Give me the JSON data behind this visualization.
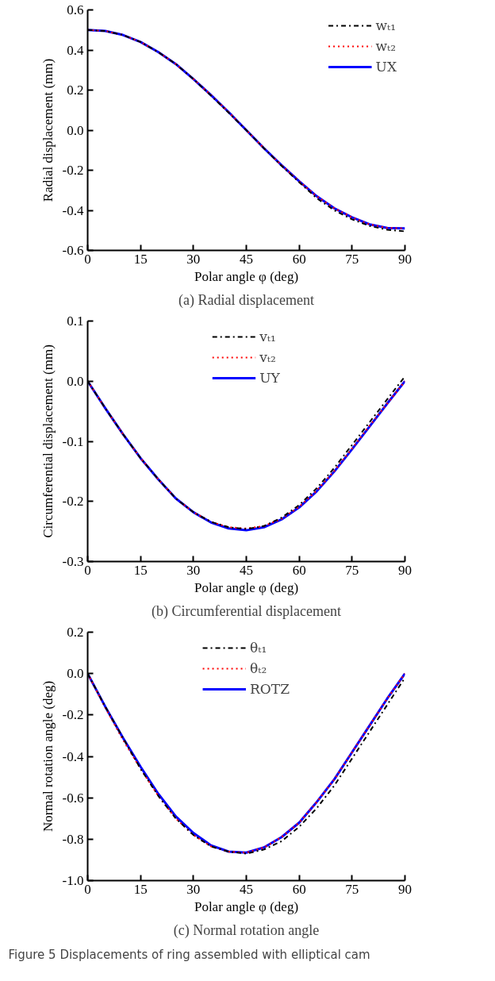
{
  "chart_data": [
    {
      "type": "line",
      "title": "(a) Radial displacement",
      "xlabel": "Polar angle φ (deg)",
      "ylabel": "Radial displacement (mm)",
      "x": [
        0,
        5,
        10,
        15,
        20,
        25,
        30,
        35,
        40,
        45,
        50,
        55,
        60,
        65,
        70,
        75,
        80,
        85,
        90
      ],
      "xlim": [
        0,
        90
      ],
      "xticks": [
        0,
        15,
        30,
        45,
        60,
        75,
        90
      ],
      "ylim": [
        -0.6,
        0.6
      ],
      "yticks": [
        {
          "value": -0.6,
          "label": "-0.6"
        },
        {
          "value": -0.4,
          "label": "-0.4"
        },
        {
          "value": -0.2,
          "label": "-0.2"
        },
        {
          "value": 0,
          "label": "0.0"
        },
        {
          "value": 0.2,
          "label": "0.2"
        },
        {
          "value": 0.4,
          "label": "0.4"
        },
        {
          "value": 0.6,
          "label": "0.6"
        }
      ],
      "grid": false,
      "legend": "top right",
      "series": [
        {
          "name": "wₜ₁",
          "color": "#000000",
          "line_style": "dashdot",
          "values": [
            0.5,
            0.495,
            0.475,
            0.44,
            0.39,
            0.33,
            0.255,
            0.172,
            0.087,
            0.0,
            -0.09,
            -0.178,
            -0.26,
            -0.34,
            -0.4,
            -0.445,
            -0.478,
            -0.497,
            -0.505
          ]
        },
        {
          "name": "wₜ₂",
          "color": "#ff0000",
          "line_style": "dotted",
          "values": [
            0.5,
            0.495,
            0.475,
            0.44,
            0.39,
            0.33,
            0.255,
            0.175,
            0.09,
            0.0,
            -0.09,
            -0.175,
            -0.255,
            -0.33,
            -0.39,
            -0.435,
            -0.47,
            -0.488,
            -0.49
          ]
        },
        {
          "name": "UX",
          "color": "#0000ff",
          "line_style": "solid",
          "values": [
            0.5,
            0.495,
            0.475,
            0.44,
            0.39,
            0.33,
            0.255,
            0.175,
            0.09,
            0.0,
            -0.09,
            -0.175,
            -0.255,
            -0.33,
            -0.39,
            -0.435,
            -0.47,
            -0.488,
            -0.49
          ]
        }
      ]
    },
    {
      "type": "line",
      "title": "(b) Circumferential displacement",
      "xlabel": "Polar angle φ (deg)",
      "ylabel": "Circumferential displacement (mm)",
      "x": [
        0,
        5,
        10,
        15,
        20,
        25,
        30,
        35,
        40,
        45,
        50,
        55,
        60,
        65,
        70,
        75,
        80,
        85,
        90
      ],
      "xlim": [
        0,
        90
      ],
      "xticks": [
        0,
        15,
        30,
        45,
        60,
        75,
        90
      ],
      "ylim": [
        -0.3,
        0.1
      ],
      "yticks": [
        {
          "value": -0.3,
          "label": "-0.3"
        },
        {
          "value": -0.2,
          "label": "-0.2"
        },
        {
          "value": -0.1,
          "label": "-0.1"
        },
        {
          "value": 0,
          "label": "0.0"
        },
        {
          "value": 0.1,
          "label": "0.1"
        }
      ],
      "grid": false,
      "legend": "top",
      "series": [
        {
          "name": "vₜ₁",
          "color": "#000000",
          "line_style": "dashdot",
          "values": [
            0,
            -0.045,
            -0.088,
            -0.128,
            -0.163,
            -0.195,
            -0.218,
            -0.234,
            -0.243,
            -0.246,
            -0.241,
            -0.227,
            -0.206,
            -0.178,
            -0.144,
            -0.106,
            -0.068,
            -0.03,
            0.008
          ]
        },
        {
          "name": "vₜ₂",
          "color": "#ff0000",
          "line_style": "dotted",
          "values": [
            0,
            -0.045,
            -0.088,
            -0.128,
            -0.163,
            -0.195,
            -0.218,
            -0.234,
            -0.243,
            -0.245,
            -0.241,
            -0.229,
            -0.209,
            -0.182,
            -0.149,
            -0.112,
            -0.074,
            -0.037,
            0.0
          ]
        },
        {
          "name": "UY",
          "color": "#0000ff",
          "line_style": "solid",
          "values": [
            0,
            -0.045,
            -0.088,
            -0.128,
            -0.163,
            -0.195,
            -0.218,
            -0.235,
            -0.245,
            -0.248,
            -0.243,
            -0.23,
            -0.21,
            -0.183,
            -0.15,
            -0.113,
            -0.075,
            -0.037,
            0.0
          ]
        }
      ]
    },
    {
      "type": "line",
      "title": "(c) Normal rotation angle",
      "xlabel": "Polar angle φ (deg)",
      "ylabel": "Normal rotation angle (deg)",
      "x": [
        0,
        5,
        10,
        15,
        20,
        25,
        30,
        35,
        40,
        45,
        50,
        55,
        60,
        65,
        70,
        75,
        80,
        85,
        90
      ],
      "xlim": [
        0,
        90
      ],
      "xticks": [
        0,
        15,
        30,
        45,
        60,
        75,
        90
      ],
      "ylim": [
        -1.0,
        0.2
      ],
      "yticks": [
        {
          "value": -1.0,
          "label": "-1.0"
        },
        {
          "value": -0.8,
          "label": "-0.8"
        },
        {
          "value": -0.6,
          "label": "-0.6"
        },
        {
          "value": -0.4,
          "label": "-0.4"
        },
        {
          "value": -0.2,
          "label": "-0.2"
        },
        {
          "value": 0,
          "label": "0.0"
        },
        {
          "value": 0.2,
          "label": "0.2"
        }
      ],
      "grid": false,
      "legend": "top",
      "annotations": [
        "Figure 5  Displacements of ring assembled with elliptical cam"
      ],
      "series": [
        {
          "name": "θₜ₁",
          "color": "#000000",
          "line_style": "dashdot",
          "values": [
            0,
            -0.16,
            -0.31,
            -0.46,
            -0.59,
            -0.7,
            -0.78,
            -0.835,
            -0.86,
            -0.87,
            -0.85,
            -0.81,
            -0.74,
            -0.65,
            -0.54,
            -0.41,
            -0.28,
            -0.15,
            -0.02
          ]
        },
        {
          "name": "θₜ₂",
          "color": "#ff0000",
          "line_style": "dotted",
          "values": [
            0,
            -0.165,
            -0.32,
            -0.46,
            -0.59,
            -0.7,
            -0.78,
            -0.835,
            -0.86,
            -0.865,
            -0.84,
            -0.79,
            -0.72,
            -0.62,
            -0.51,
            -0.38,
            -0.25,
            -0.12,
            0.0
          ]
        },
        {
          "name": "ROTZ",
          "color": "#0000ff",
          "line_style": "solid",
          "values": [
            0,
            -0.16,
            -0.31,
            -0.45,
            -0.58,
            -0.69,
            -0.77,
            -0.83,
            -0.86,
            -0.865,
            -0.84,
            -0.79,
            -0.72,
            -0.62,
            -0.51,
            -0.38,
            -0.25,
            -0.12,
            0.0
          ]
        }
      ]
    }
  ]
}
